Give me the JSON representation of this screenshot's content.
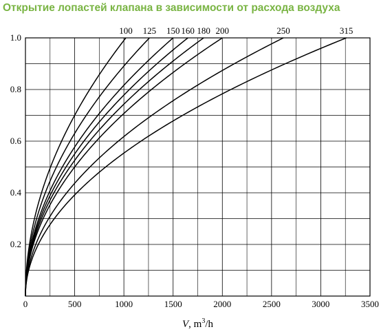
{
  "page": {
    "title": "Открытие лопастей клапана в зависимости от расхода воздуха",
    "title_color": "#79b443"
  },
  "chart_data": {
    "type": "line",
    "title": "Открытие лопастей клапана в зависимости от расхода воздуха",
    "xlabel_italic": "V",
    "xlabel_rest": ", m",
    "xlabel_sup": "3",
    "xlabel_tail": "/h",
    "ylabel": "",
    "xlim": [
      0,
      3500
    ],
    "ylim": [
      0,
      1.0
    ],
    "x_ticks": [
      0,
      500,
      1000,
      1500,
      2000,
      2500,
      3000,
      3500
    ],
    "x_tick_labels": [
      "0",
      "500",
      "1000",
      "1500",
      "2000",
      "2500",
      "3000",
      "3500"
    ],
    "y_ticks": [
      0.2,
      0.4,
      0.6,
      0.8,
      1.0
    ],
    "y_tick_labels": [
      "0.2",
      "0.4",
      "0.6",
      "0.8",
      "1.0"
    ],
    "grid": true,
    "x_minor_step": 250,
    "y_minor_step": 0.1,
    "line_color": "#000000",
    "series": [
      {
        "name": "100",
        "x_at_full_open": 1020
      },
      {
        "name": "125",
        "x_at_full_open": 1260
      },
      {
        "name": "150",
        "x_at_full_open": 1500
      },
      {
        "name": "160",
        "x_at_full_open": 1650
      },
      {
        "name": "180",
        "x_at_full_open": 1810
      },
      {
        "name": "200",
        "x_at_full_open": 2000
      },
      {
        "name": "250",
        "x_at_full_open": 2620
      },
      {
        "name": "315",
        "x_at_full_open": 3260
      }
    ]
  }
}
